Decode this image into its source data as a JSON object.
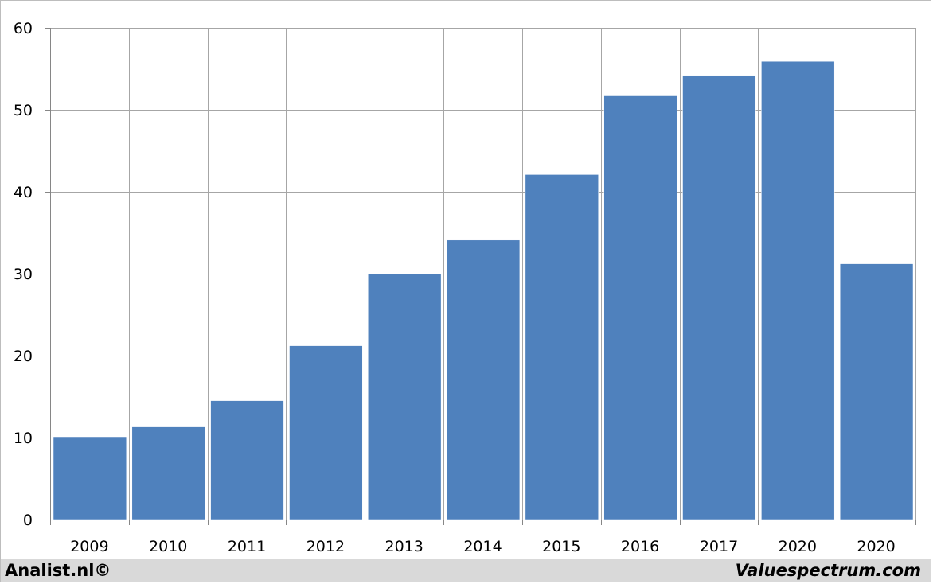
{
  "chart_data": {
    "type": "bar",
    "categories": [
      "2009",
      "2010",
      "2011",
      "2012",
      "2013",
      "2014",
      "2015",
      "2016",
      "2017",
      "2020",
      "2020"
    ],
    "values": [
      10.1,
      11.3,
      14.5,
      21.2,
      30.0,
      34.1,
      42.1,
      51.7,
      54.2,
      55.9,
      31.2
    ],
    "title": "",
    "xlabel": "",
    "ylabel": "",
    "ylim": [
      0,
      60
    ],
    "yticks": [
      0,
      10,
      20,
      30,
      40,
      50,
      60
    ],
    "grid": true,
    "legend": "none",
    "bar_color": "#4f81bd",
    "grid_color": "#a6a6a6"
  },
  "footer": {
    "left_text": "Analist.nl©",
    "right_text": "Valuespectrum.com",
    "background": "#d9d9d9"
  }
}
